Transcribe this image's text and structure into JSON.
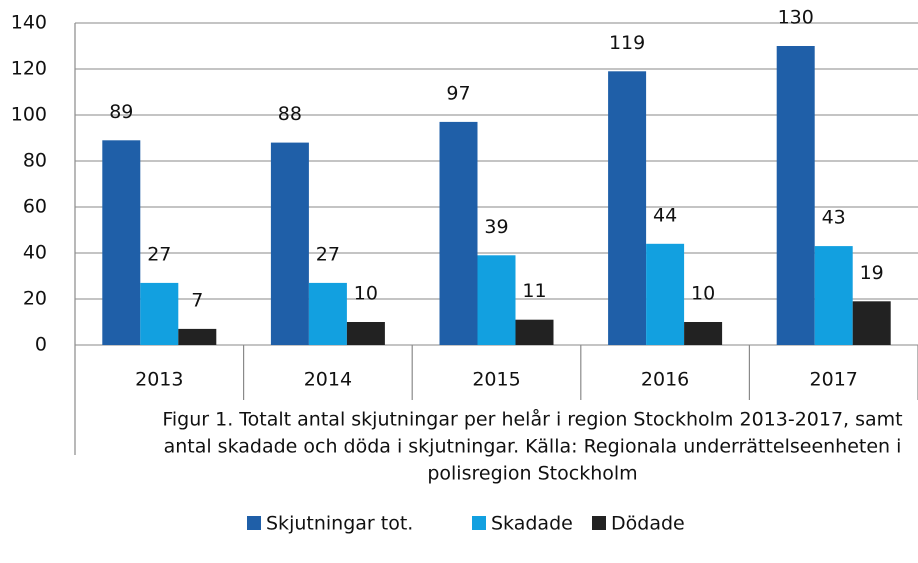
{
  "chart_data": {
    "type": "bar",
    "categories": [
      "2013",
      "2014",
      "2015",
      "2016",
      "2017"
    ],
    "series": [
      {
        "name": "Skjutningar tot.",
        "color": "#1f5fa8",
        "values": [
          89,
          88,
          97,
          119,
          130
        ]
      },
      {
        "name": "Skadade",
        "color": "#12a0e0",
        "values": [
          27,
          27,
          39,
          44,
          43
        ]
      },
      {
        "name": "Dödade",
        "color": "#222222",
        "values": [
          7,
          10,
          11,
          10,
          19
        ]
      }
    ],
    "ylim": [
      0,
      140
    ],
    "yticks": [
      0,
      20,
      40,
      60,
      80,
      100,
      120,
      140
    ],
    "grid": true,
    "legend": "bottom",
    "caption": [
      "Figur 1. Totalt antal skjutningar per helår i region Stockholm 2013-2017, samt",
      "antal skadade och döda i skjutningar. Källa: Regionala underrättelseenheten i",
      "polisregion Stockholm"
    ]
  }
}
